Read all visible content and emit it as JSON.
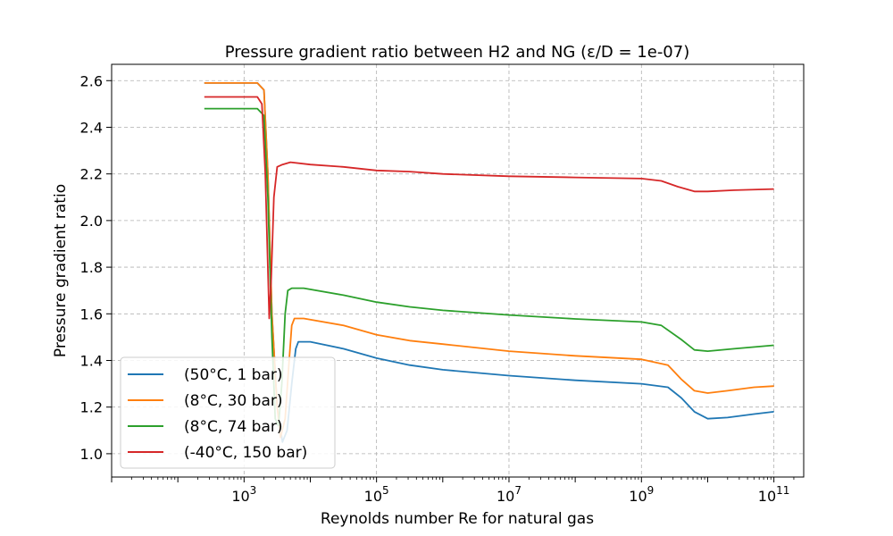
{
  "chart_data": {
    "type": "line",
    "title": "Pressure gradient ratio between H2 and NG (ε/D = 1e-07)",
    "xlabel": "Reynolds number Re for natural gas",
    "ylabel": "Pressure gradient ratio",
    "xscale": "log",
    "xlim_log10": [
      1.0,
      11.45
    ],
    "ylim": [
      0.9,
      2.67
    ],
    "x_ticks": [
      {
        "log10": 3,
        "base": "10",
        "exp": "3"
      },
      {
        "log10": 5,
        "base": "10",
        "exp": "5"
      },
      {
        "log10": 7,
        "base": "10",
        "exp": "7"
      },
      {
        "log10": 9,
        "base": "10",
        "exp": "9"
      },
      {
        "log10": 11,
        "base": "10",
        "exp": "11"
      }
    ],
    "y_ticks": [
      {
        "value": 1.0,
        "label": "1.0"
      },
      {
        "value": 1.2,
        "label": "1.2"
      },
      {
        "value": 1.4,
        "label": "1.4"
      },
      {
        "value": 1.6,
        "label": "1.6"
      },
      {
        "value": 1.8,
        "label": "1.8"
      },
      {
        "value": 2.0,
        "label": "2.0"
      },
      {
        "value": 2.2,
        "label": "2.2"
      },
      {
        "value": 2.4,
        "label": "2.4"
      },
      {
        "value": 2.6,
        "label": "2.6"
      }
    ],
    "grid": true,
    "legend_position": "lower-left",
    "series": [
      {
        "name": "(50°C, 1 bar)",
        "color": "#1f77b4",
        "points": [
          [
            2.4,
            2.59
          ],
          [
            3.2,
            2.59
          ],
          [
            3.3,
            2.56
          ],
          [
            3.36,
            2.2
          ],
          [
            3.42,
            1.6
          ],
          [
            3.5,
            1.2
          ],
          [
            3.58,
            1.05
          ],
          [
            3.65,
            1.1
          ],
          [
            3.72,
            1.3
          ],
          [
            3.78,
            1.45
          ],
          [
            3.82,
            1.48
          ],
          [
            4.0,
            1.48
          ],
          [
            4.5,
            1.45
          ],
          [
            5.0,
            1.41
          ],
          [
            5.5,
            1.38
          ],
          [
            6.0,
            1.36
          ],
          [
            7.0,
            1.335
          ],
          [
            8.0,
            1.315
          ],
          [
            9.0,
            1.3
          ],
          [
            9.4,
            1.285
          ],
          [
            9.6,
            1.24
          ],
          [
            9.8,
            1.18
          ],
          [
            10.0,
            1.15
          ],
          [
            10.3,
            1.155
          ],
          [
            10.7,
            1.17
          ],
          [
            11.0,
            1.18
          ]
        ]
      },
      {
        "name": "(8°C, 30 bar)",
        "color": "#ff7f0e",
        "points": [
          [
            2.4,
            2.59
          ],
          [
            3.2,
            2.59
          ],
          [
            3.3,
            2.56
          ],
          [
            3.36,
            2.2
          ],
          [
            3.42,
            1.6
          ],
          [
            3.5,
            1.2
          ],
          [
            3.55,
            1.07
          ],
          [
            3.62,
            1.15
          ],
          [
            3.68,
            1.4
          ],
          [
            3.72,
            1.55
          ],
          [
            3.76,
            1.58
          ],
          [
            3.9,
            1.58
          ],
          [
            4.5,
            1.55
          ],
          [
            5.0,
            1.51
          ],
          [
            5.5,
            1.485
          ],
          [
            6.0,
            1.47
          ],
          [
            7.0,
            1.44
          ],
          [
            8.0,
            1.42
          ],
          [
            9.0,
            1.405
          ],
          [
            9.4,
            1.38
          ],
          [
            9.6,
            1.32
          ],
          [
            9.8,
            1.27
          ],
          [
            10.0,
            1.26
          ],
          [
            10.3,
            1.27
          ],
          [
            10.7,
            1.285
          ],
          [
            11.0,
            1.29
          ]
        ]
      },
      {
        "name": "(8°C, 74 bar)",
        "color": "#2ca02c",
        "points": [
          [
            2.4,
            2.48
          ],
          [
            3.2,
            2.48
          ],
          [
            3.3,
            2.45
          ],
          [
            3.36,
            2.1
          ],
          [
            3.42,
            1.5
          ],
          [
            3.47,
            1.15
          ],
          [
            3.52,
            1.12
          ],
          [
            3.57,
            1.3
          ],
          [
            3.62,
            1.6
          ],
          [
            3.66,
            1.7
          ],
          [
            3.72,
            1.71
          ],
          [
            3.9,
            1.71
          ],
          [
            4.5,
            1.68
          ],
          [
            5.0,
            1.65
          ],
          [
            5.5,
            1.63
          ],
          [
            6.0,
            1.615
          ],
          [
            7.0,
            1.595
          ],
          [
            8.0,
            1.578
          ],
          [
            9.0,
            1.565
          ],
          [
            9.3,
            1.55
          ],
          [
            9.6,
            1.49
          ],
          [
            9.8,
            1.445
          ],
          [
            10.0,
            1.44
          ],
          [
            10.4,
            1.45
          ],
          [
            11.0,
            1.465
          ]
        ]
      },
      {
        "name": "(-40°C, 150 bar)",
        "color": "#d62728",
        "points": [
          [
            2.4,
            2.53
          ],
          [
            3.2,
            2.53
          ],
          [
            3.27,
            2.5
          ],
          [
            3.32,
            2.2
          ],
          [
            3.38,
            1.58
          ],
          [
            3.41,
            1.75
          ],
          [
            3.45,
            2.1
          ],
          [
            3.5,
            2.23
          ],
          [
            3.58,
            2.24
          ],
          [
            3.7,
            2.25
          ],
          [
            4.0,
            2.24
          ],
          [
            4.5,
            2.23
          ],
          [
            5.0,
            2.215
          ],
          [
            5.5,
            2.21
          ],
          [
            6.0,
            2.2
          ],
          [
            7.0,
            2.19
          ],
          [
            8.0,
            2.185
          ],
          [
            9.0,
            2.18
          ],
          [
            9.3,
            2.17
          ],
          [
            9.55,
            2.145
          ],
          [
            9.8,
            2.125
          ],
          [
            10.0,
            2.125
          ],
          [
            10.4,
            2.13
          ],
          [
            11.0,
            2.135
          ]
        ]
      }
    ]
  }
}
